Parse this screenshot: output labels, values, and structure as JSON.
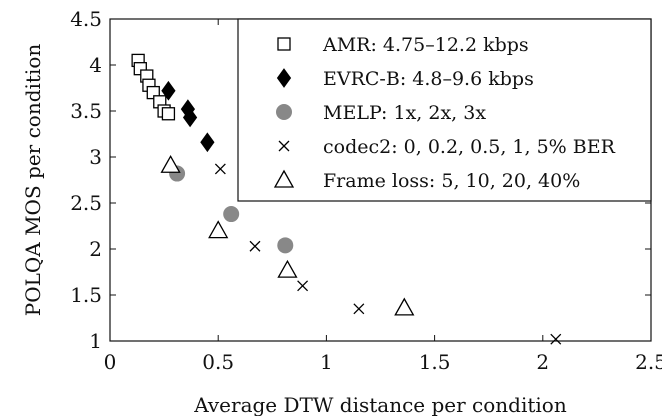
{
  "chart_data": {
    "type": "scatter",
    "xlabel": "Average DTW distance per condition",
    "ylabel": "POLQA MOS per condition",
    "xlim": [
      0,
      2.5
    ],
    "ylim": [
      1,
      4.5
    ],
    "xticks": [
      "0",
      "0.5",
      "1",
      "1.5",
      "2",
      "2.5"
    ],
    "yticks": [
      "1",
      "1.5",
      "2",
      "2.5",
      "3",
      "3.5",
      "4",
      "4.5"
    ],
    "grid": false,
    "legend_position": "top-right",
    "series": [
      {
        "name": "AMR: 4.75–12.2 kbps",
        "marker": "open-square",
        "points": [
          [
            0.13,
            4.05
          ],
          [
            0.14,
            3.96
          ],
          [
            0.17,
            3.88
          ],
          [
            0.18,
            3.78
          ],
          [
            0.2,
            3.7
          ],
          [
            0.23,
            3.6
          ],
          [
            0.25,
            3.5
          ],
          [
            0.27,
            3.47
          ]
        ]
      },
      {
        "name": "EVRC-B: 4.8–9.6 kbps",
        "marker": "filled-diamond",
        "points": [
          [
            0.27,
            3.72
          ],
          [
            0.36,
            3.52
          ],
          [
            0.37,
            3.43
          ],
          [
            0.45,
            3.16
          ]
        ]
      },
      {
        "name": "MELP: 1x, 2x, 3x",
        "marker": "filled-circle",
        "points": [
          [
            0.31,
            2.82
          ],
          [
            0.56,
            2.38
          ],
          [
            0.81,
            2.04
          ]
        ]
      },
      {
        "name": "codec2: 0, 0.2, 0.5, 1, 5% BER",
        "marker": "x",
        "points": [
          [
            0.51,
            2.87
          ],
          [
            0.67,
            2.03
          ],
          [
            0.89,
            1.6
          ],
          [
            1.15,
            1.35
          ],
          [
            2.06,
            1.02
          ]
        ]
      },
      {
        "name": "Frame loss: 5, 10, 20, 40%",
        "marker": "open-triangle",
        "points": [
          [
            0.28,
            2.91
          ],
          [
            0.5,
            2.2
          ],
          [
            0.82,
            1.77
          ],
          [
            1.36,
            1.36
          ]
        ]
      }
    ]
  },
  "colors": {
    "axis": "#111111",
    "filled_marker": "#000000",
    "circle_marker": "#888888"
  }
}
